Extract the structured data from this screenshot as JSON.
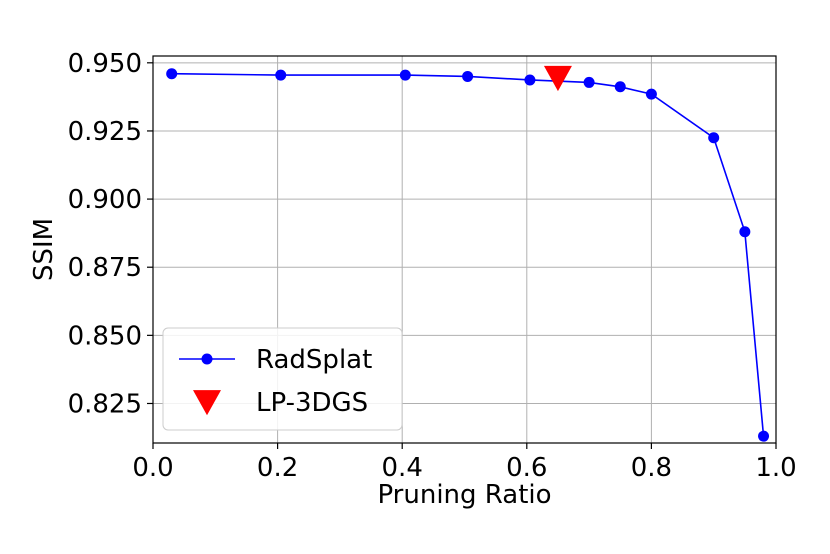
{
  "chart_data": {
    "type": "line",
    "title": "",
    "xlabel": "Pruning Ratio",
    "ylabel": "SSIM",
    "xlim": [
      0.0,
      1.0
    ],
    "ylim": [
      0.8105,
      0.9525
    ],
    "x_ticks": [
      "0.0",
      "0.2",
      "0.4",
      "0.6",
      "0.8",
      "1.0"
    ],
    "y_ticks": [
      "0.825",
      "0.850",
      "0.875",
      "0.900",
      "0.925",
      "0.950"
    ],
    "grid": true,
    "legend_position": "lower-left",
    "series": [
      {
        "name": "RadSplat",
        "marker": "circle",
        "color": "#0000ff",
        "x": [
          0.03,
          0.205,
          0.405,
          0.505,
          0.605,
          0.7,
          0.75,
          0.8,
          0.9,
          0.95,
          0.98
        ],
        "y": [
          0.946,
          0.9455,
          0.9455,
          0.945,
          0.9437,
          0.9428,
          0.9412,
          0.9385,
          0.9225,
          0.888,
          0.813
        ]
      },
      {
        "name": "LP-3DGS",
        "marker": "triangle-down",
        "color": "#ff0000",
        "x": [
          0.65
        ],
        "y": [
          0.9445
        ]
      }
    ]
  }
}
